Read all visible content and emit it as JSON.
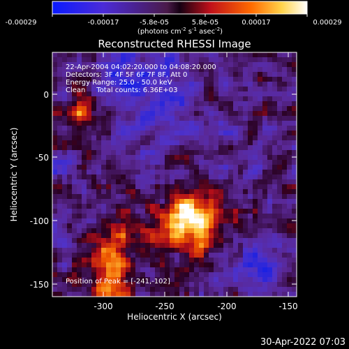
{
  "colorbar": {
    "tick_labels": [
      "-0.00029",
      "-0.00017",
      "-5.8e-05",
      "5.8e-05",
      "0.00017",
      "0.00029"
    ],
    "units_prefix": "(photons cm",
    "units_exp1": "-2",
    "units_mid": " s",
    "units_exp2": "-1",
    "units_suffix": " asec",
    "units_exp3": "-2",
    "units_close": ")"
  },
  "plot": {
    "title": "Reconstructed RHESSI Image",
    "xlabel": "Heliocentric X (arcsec)",
    "ylabel": "Heliocentric Y (arcsec)",
    "x_ticks": [
      "-300",
      "-250",
      "-200",
      "-150"
    ],
    "y_ticks": [
      "0",
      "-50",
      "-100",
      "-150"
    ]
  },
  "annotations": {
    "time_range": "22-Apr-2004 04:02:20.000 to 04:08:20.000",
    "detectors": "Detectors: 3F 4F 5F 6F 7F 8F, Att 0",
    "energy": "Energy Range: 25.0 - 50.0 keV",
    "method": "Clean     Total counts: 6.36E+03",
    "peak": "Position of Peak = [-241,-102]"
  },
  "footer": {
    "timestamp": "30-Apr-2022 07:03"
  },
  "chart_data": {
    "type": "heatmap",
    "title": "Reconstructed RHESSI Image",
    "xlabel": "Heliocentric X (arcsec)",
    "ylabel": "Heliocentric Y (arcsec)",
    "xlim": [
      -340,
      -150
    ],
    "ylim": [
      -160,
      33
    ],
    "xticks": [
      -300,
      -250,
      -200,
      -150
    ],
    "yticks": [
      0,
      -50,
      -100,
      -150
    ],
    "colorbar_range": [
      -0.00029,
      0.00029
    ],
    "colormap": "blue-purple-red-yellow-white",
    "peak_position": [
      -241,
      -102
    ]
  }
}
